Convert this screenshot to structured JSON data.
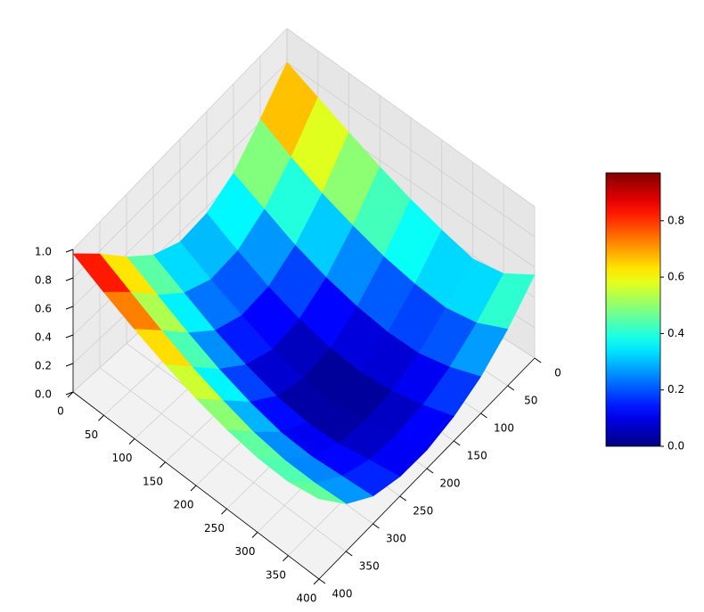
{
  "chart_data": {
    "type": "surface",
    "colormap": "jet",
    "x": [
      0,
      50,
      100,
      150,
      200,
      250,
      300,
      350,
      400
    ],
    "y": [
      0,
      50,
      100,
      150,
      200,
      250,
      300,
      350,
      400
    ],
    "z": [
      [
        0.8,
        0.62,
        0.45,
        0.36,
        0.34,
        0.42,
        0.58,
        0.78,
        0.97
      ],
      [
        0.72,
        0.52,
        0.36,
        0.26,
        0.24,
        0.32,
        0.48,
        0.68,
        0.87
      ],
      [
        0.64,
        0.43,
        0.27,
        0.17,
        0.15,
        0.22,
        0.38,
        0.58,
        0.78
      ],
      [
        0.56,
        0.36,
        0.2,
        0.1,
        0.07,
        0.14,
        0.29,
        0.49,
        0.7
      ],
      [
        0.49,
        0.3,
        0.15,
        0.05,
        0.02,
        0.08,
        0.22,
        0.42,
        0.63
      ],
      [
        0.43,
        0.26,
        0.12,
        0.03,
        0.0,
        0.05,
        0.17,
        0.36,
        0.58
      ],
      [
        0.38,
        0.24,
        0.12,
        0.05,
        0.03,
        0.06,
        0.16,
        0.33,
        0.55
      ],
      [
        0.42,
        0.28,
        0.17,
        0.1,
        0.08,
        0.1,
        0.18,
        0.33,
        0.55
      ],
      [
        0.55,
        0.38,
        0.25,
        0.17,
        0.13,
        0.14,
        0.2,
        0.35,
        0.6
      ]
    ],
    "xlim": [
      0,
      400
    ],
    "ylim": [
      0,
      400
    ],
    "zlim": [
      0,
      1
    ],
    "xticks": [
      0,
      50,
      100,
      150,
      200,
      250,
      300,
      350,
      400
    ],
    "yticks": [
      0,
      50,
      100,
      150,
      200,
      250,
      300,
      350,
      400
    ],
    "zticks": [
      {
        "value": 0,
        "label": "0.0"
      },
      {
        "value": 0.2,
        "label": "0.2"
      },
      {
        "value": 0.4,
        "label": "0.4"
      },
      {
        "value": 0.6,
        "label": "0.6"
      },
      {
        "value": 0.8,
        "label": "0.8"
      },
      {
        "value": 1,
        "label": "1.0"
      }
    ],
    "colorbar_lim": [
      0,
      0.97
    ],
    "colorbar_ticks": [
      {
        "value": 0,
        "label": "0.0"
      },
      {
        "value": 0.2,
        "label": "0.2"
      },
      {
        "value": 0.4,
        "label": "0.4"
      },
      {
        "value": 0.6,
        "label": "0.6"
      },
      {
        "value": 0.8,
        "label": "0.8"
      }
    ],
    "grid": true
  }
}
